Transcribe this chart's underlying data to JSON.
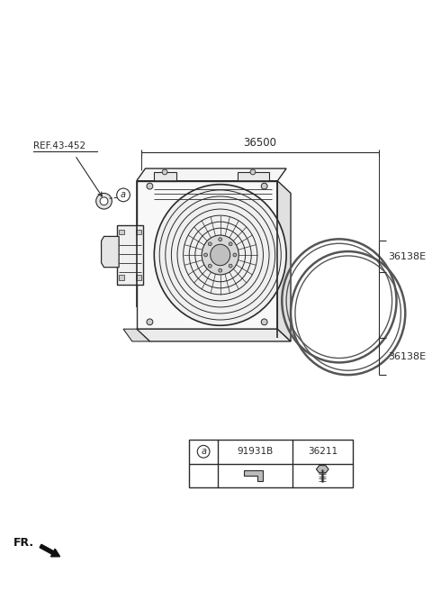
{
  "bg_color": "#ffffff",
  "line_color": "#2a2a2a",
  "text_color": "#2a2a2a",
  "title_label": "36500",
  "ref_label": "REF.43-452",
  "part_a_label": "91931B",
  "part_b_label": "36211",
  "label_36138E_1": "36138E",
  "label_36138E_2": "36138E",
  "fr_label": "FR.",
  "circle_a_label": "a",
  "figsize": [
    4.8,
    6.56
  ],
  "dpi": 100
}
